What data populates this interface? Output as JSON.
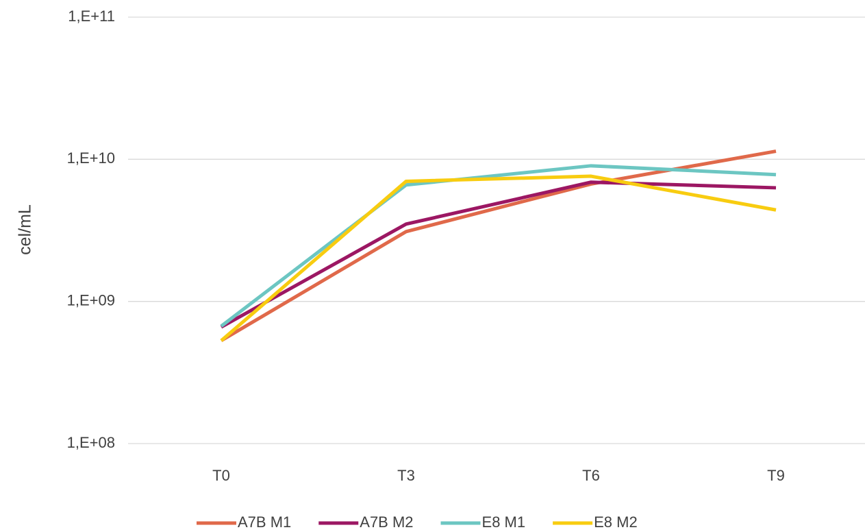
{
  "chart_data": {
    "type": "line",
    "y_label": "cel/mL",
    "categories": [
      "T0",
      "T3",
      "T6",
      "T9"
    ],
    "series": [
      {
        "name": "A7B M1",
        "color": "#e0694a",
        "values": [
          530000000,
          3100000000,
          6700000000,
          11400000000
        ]
      },
      {
        "name": "A7B M2",
        "color": "#9c1763",
        "values": [
          660000000,
          3500000000,
          6900000000,
          6300000000
        ]
      },
      {
        "name": "E8 M1",
        "color": "#6cc6c2",
        "values": [
          670000000,
          6600000000,
          9000000000,
          7800000000
        ]
      },
      {
        "name": "E8 M2",
        "color": "#f8cc10",
        "values": [
          530000000,
          7000000000,
          7600000000,
          4400000000
        ]
      }
    ],
    "log_scale": true,
    "ylim": [
      100000000,
      100000000000
    ],
    "yticks": [
      {
        "value": 100000000,
        "label": "1,E+08"
      },
      {
        "value": 1000000000,
        "label": "1,E+09"
      },
      {
        "value": 10000000000,
        "label": "1,E+10"
      },
      {
        "value": 100000000000,
        "label": "1,E+11"
      }
    ],
    "grid": true,
    "legend": "bottom"
  }
}
